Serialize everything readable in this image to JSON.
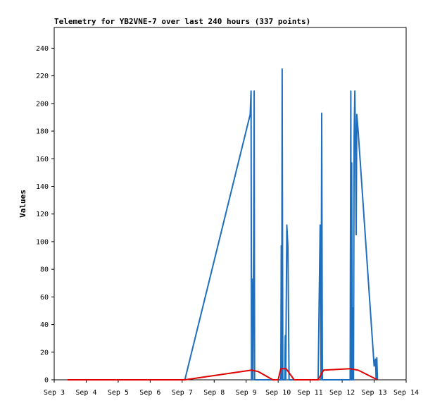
{
  "chart_data": {
    "type": "line",
    "title": "Telemetry for YB2VNE-7 over last 240 hours (337 points)",
    "ylabel": "Values",
    "xlabel": "",
    "ylim": [
      0,
      255
    ],
    "xlim": [
      "Sep 3",
      "Sep 14"
    ],
    "x_ticks": [
      "Sep 3",
      "Sep 4",
      "Sep 5",
      "Sep 6",
      "Sep 7",
      "Sep 8",
      "Sep 9",
      "Sep 10",
      "Sep 11",
      "Sep 12",
      "Sep 13",
      "Sep 14"
    ],
    "y_ticks": [
      0,
      20,
      40,
      60,
      80,
      100,
      120,
      140,
      160,
      180,
      200,
      220,
      240
    ],
    "grid": false,
    "series": [
      {
        "color": "#1f6fbf",
        "points": [
          [
            "Sep 3 10:00",
            0
          ],
          [
            "Sep 7 02:00",
            0
          ],
          [
            "Sep 9 03:00",
            192
          ],
          [
            "Sep 9 03:40",
            209
          ],
          [
            "Sep 9 04:00",
            0
          ],
          [
            "Sep 9 04:20",
            73
          ],
          [
            "Sep 9 05:00",
            0
          ],
          [
            "Sep 9 05:40",
            105
          ],
          [
            "Sep 9 06:00",
            209
          ],
          [
            "Sep 9 06:20",
            0
          ],
          [
            "Sep 10 02:00",
            0
          ],
          [
            "Sep 10 02:20",
            97
          ],
          [
            "Sep 10 02:40",
            0
          ],
          [
            "Sep 10 03:00",
            225
          ],
          [
            "Sep 10 03:30",
            0
          ],
          [
            "Sep 10 05:00",
            0
          ],
          [
            "Sep 10 05:20",
            32
          ],
          [
            "Sep 10 05:40",
            0
          ],
          [
            "Sep 10 06:30",
            112
          ],
          [
            "Sep 10 07:20",
            96
          ],
          [
            "Sep 10 08:10",
            0
          ],
          [
            "Sep 10 10:00",
            0
          ],
          [
            "Sep 10 12:00",
            0
          ],
          [
            "Sep 11 00:00",
            0
          ],
          [
            "Sep 11 06:00",
            0
          ],
          [
            "Sep 11 07:30",
            112
          ],
          [
            "Sep 11 08:10",
            0
          ],
          [
            "Sep 11 08:40",
            193
          ],
          [
            "Sep 11 09:10",
            0
          ],
          [
            "Sep 12 06:00",
            0
          ],
          [
            "Sep 12 06:30",
            209
          ],
          [
            "Sep 12 06:50",
            0
          ],
          [
            "Sep 12 07:10",
            157
          ],
          [
            "Sep 12 07:30",
            0
          ],
          [
            "Sep 12 08:00",
            52
          ],
          [
            "Sep 12 08:30",
            0
          ],
          [
            "Sep 12 09:00",
            177
          ],
          [
            "Sep 12 09:30",
            209
          ],
          [
            "Sep 12 10:00",
            173
          ],
          [
            "Sep 12 10:30",
            105
          ],
          [
            "Sep 12 11:00",
            192
          ],
          [
            "Sep 12 12:00",
            180
          ],
          [
            "Sep 13 00:00",
            10
          ],
          [
            "Sep 13 01:00",
            15
          ],
          [
            "Sep 13 01:30",
            0
          ],
          [
            "Sep 13 02:00",
            16
          ],
          [
            "Sep 13 02:30",
            0
          ]
        ]
      },
      {
        "color": "#e00000",
        "points": [
          [
            "Sep 3 10:00",
            0
          ],
          [
            "Sep 7 02:00",
            0
          ],
          [
            "Sep 9 04:00",
            7
          ],
          [
            "Sep 9 09:00",
            6
          ],
          [
            "Sep 9 20:00",
            0
          ],
          [
            "Sep 10 00:00",
            0
          ],
          [
            "Sep 10 02:00",
            8
          ],
          [
            "Sep 10 06:00",
            8
          ],
          [
            "Sep 10 12:00",
            0
          ],
          [
            "Sep 11 04:00",
            0
          ],
          [
            "Sep 11 06:00",
            0
          ],
          [
            "Sep 11 10:00",
            7
          ],
          [
            "Sep 12 06:00",
            8
          ],
          [
            "Sep 12 12:00",
            7
          ],
          [
            "Sep 13 02:30",
            0
          ]
        ]
      }
    ]
  }
}
